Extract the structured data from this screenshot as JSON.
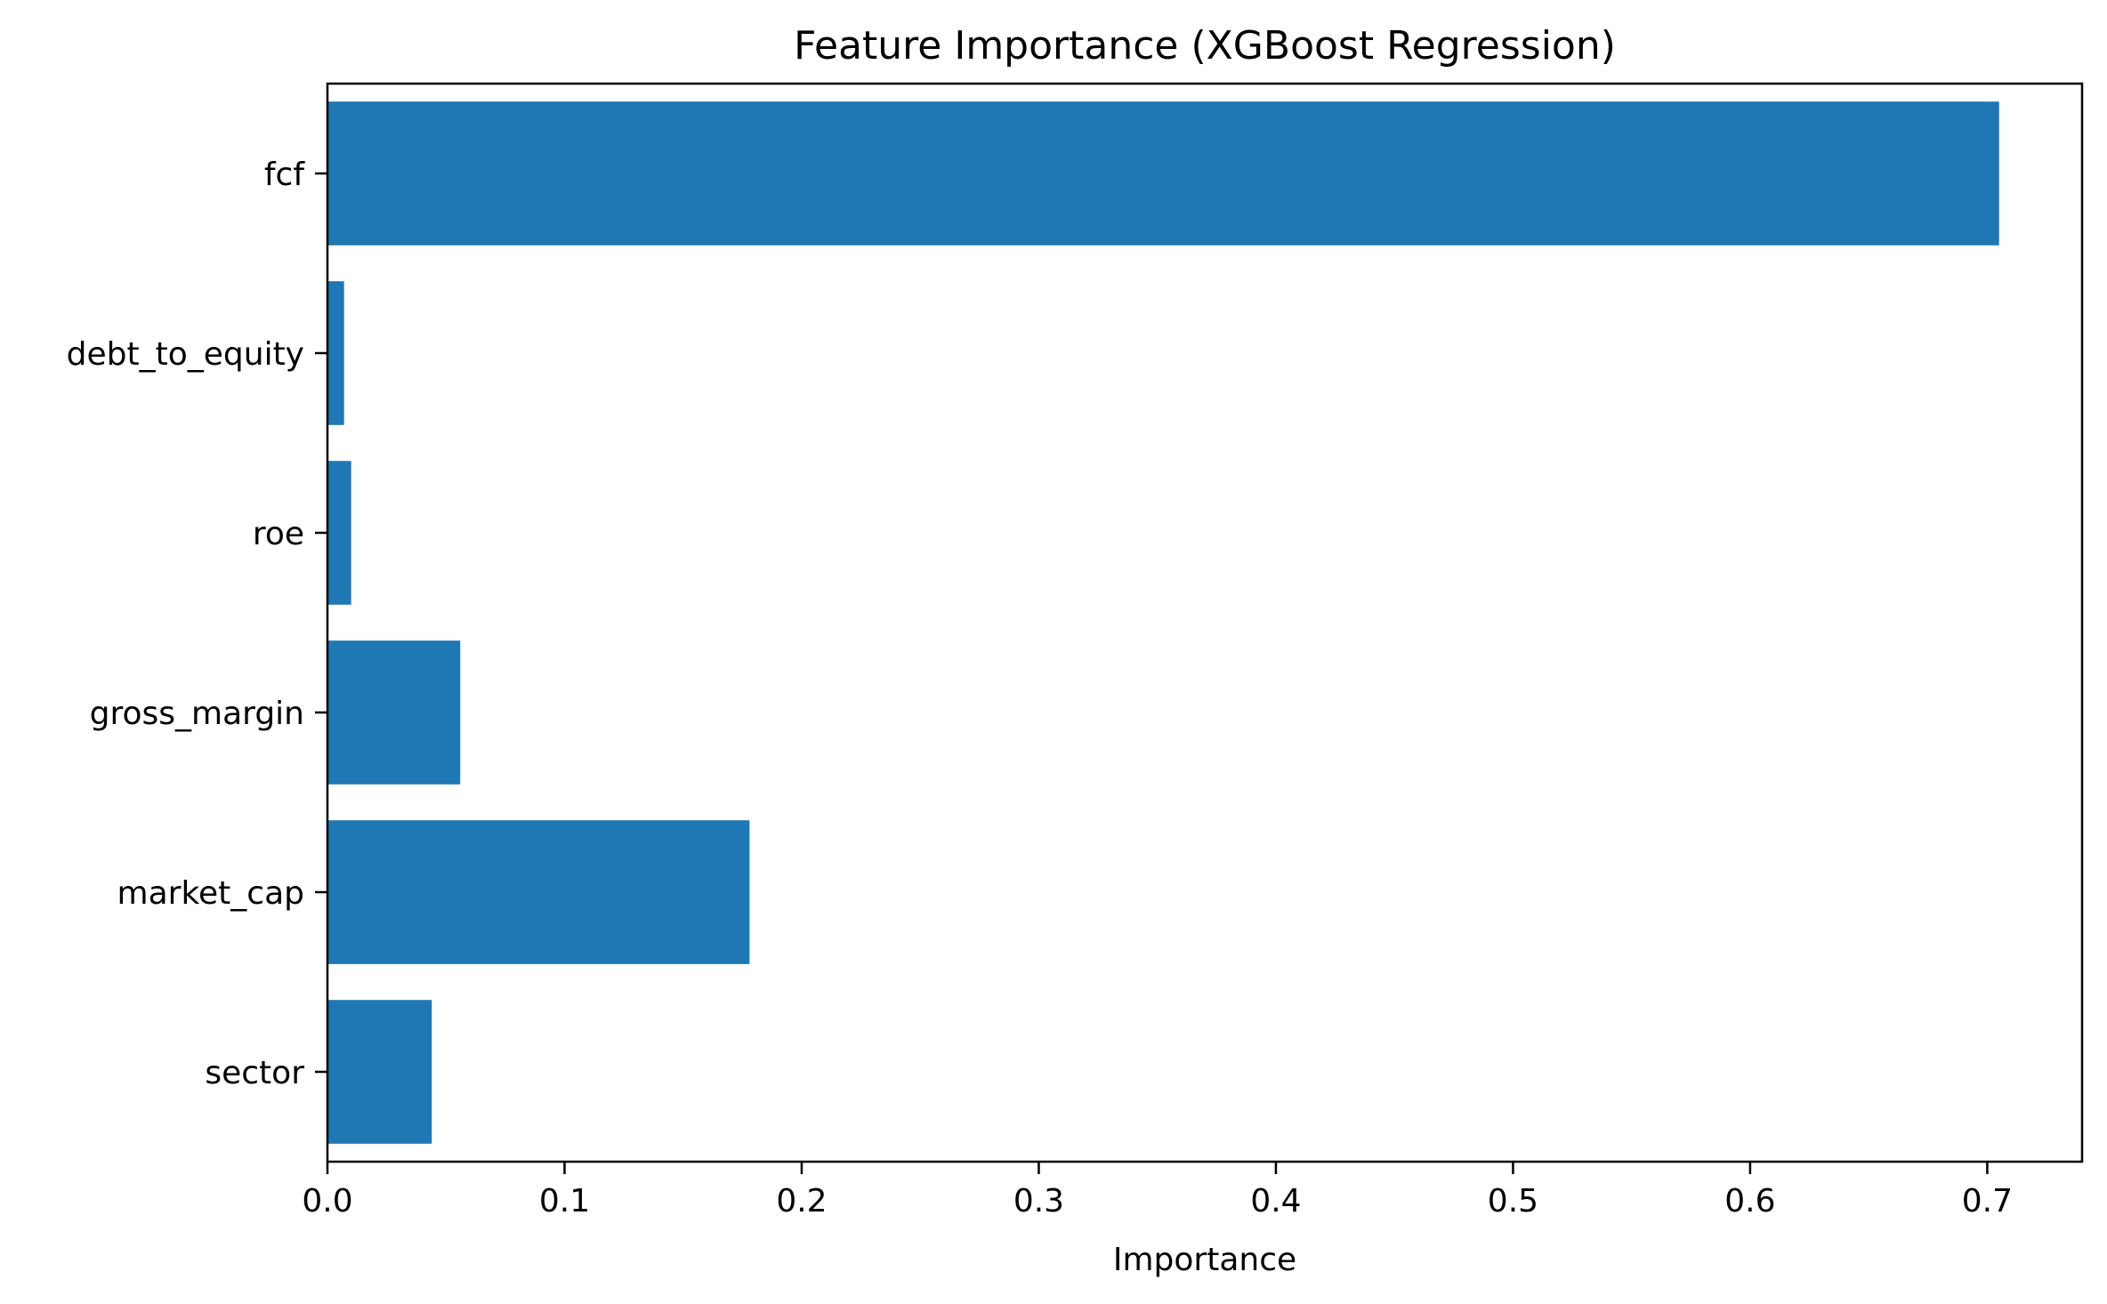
{
  "chart_data": {
    "type": "bar",
    "orientation": "horizontal",
    "title": "Feature Importance (XGBoost Regression)",
    "xlabel": "Importance",
    "ylabel": "",
    "categories": [
      "fcf",
      "debt_to_equity",
      "roe",
      "gross_margin",
      "market_cap",
      "sector"
    ],
    "values": [
      0.705,
      0.007,
      0.01,
      0.056,
      0.178,
      0.044
    ],
    "xlim": [
      0,
      0.74
    ],
    "xticks": [
      0.0,
      0.1,
      0.2,
      0.3,
      0.4,
      0.5,
      0.6,
      0.7
    ],
    "xtick_labels": [
      "0.0",
      "0.1",
      "0.2",
      "0.3",
      "0.4",
      "0.5",
      "0.6",
      "0.7"
    ],
    "grid": false,
    "legend": "none",
    "bar_color": "#1f77b4"
  }
}
